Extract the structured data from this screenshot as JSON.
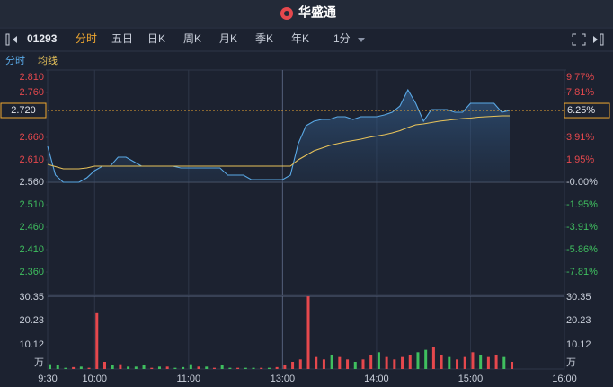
{
  "app": {
    "logo": "华盛通",
    "code": "01293",
    "tabs": [
      "分时",
      "五日",
      "日K",
      "周K",
      "月K",
      "季K",
      "年K"
    ],
    "active_tab": 0,
    "interval": "1分"
  },
  "chart_data": [
    {
      "type": "line",
      "x": [
        0,
        5,
        10,
        15,
        20,
        25,
        30,
        35,
        40,
        45,
        50,
        55,
        60,
        65,
        70,
        75,
        80,
        85,
        90,
        95,
        100,
        105,
        110,
        115,
        120,
        125,
        130,
        135,
        140,
        145,
        150,
        155,
        160,
        165,
        170,
        175,
        180,
        185,
        190,
        195,
        200,
        205,
        210,
        215,
        220,
        225,
        230,
        235,
        240,
        245,
        250,
        255,
        260,
        265,
        270,
        275,
        280,
        285,
        290,
        295
      ],
      "series": [
        {
          "name": "分时",
          "color": "#5aa9e6",
          "values": [
            2.64,
            2.576,
            2.56,
            2.56,
            2.56,
            2.57,
            2.586,
            2.596,
            2.596,
            2.616,
            2.616,
            2.606,
            2.596,
            2.596,
            2.596,
            2.596,
            2.596,
            2.592,
            2.592,
            2.592,
            2.592,
            2.592,
            2.592,
            2.576,
            2.576,
            2.576,
            2.566,
            2.566,
            2.566,
            2.566,
            2.566,
            2.576,
            2.646,
            2.686,
            2.696,
            2.7,
            2.7,
            2.706,
            2.706,
            2.7,
            2.706,
            2.706,
            2.706,
            2.71,
            2.716,
            2.73,
            2.766,
            2.736,
            2.696,
            2.722,
            2.722,
            2.722,
            2.716,
            2.716,
            2.736,
            2.736,
            2.736,
            2.736,
            2.716,
            2.72
          ]
        },
        {
          "name": "均线",
          "color": "#e8c35a",
          "values": [
            2.6,
            2.595,
            2.59,
            2.59,
            2.59,
            2.592,
            2.596,
            2.596,
            2.596,
            2.596,
            2.596,
            2.596,
            2.596,
            2.596,
            2.596,
            2.596,
            2.596,
            2.596,
            2.596,
            2.596,
            2.596,
            2.596,
            2.596,
            2.596,
            2.596,
            2.596,
            2.596,
            2.596,
            2.596,
            2.596,
            2.596,
            2.596,
            2.61,
            2.62,
            2.63,
            2.636,
            2.642,
            2.646,
            2.65,
            2.653,
            2.656,
            2.66,
            2.663,
            2.666,
            2.67,
            2.675,
            2.682,
            2.688,
            2.69,
            2.693,
            2.696,
            2.698,
            2.7,
            2.702,
            2.703,
            2.705,
            2.706,
            2.707,
            2.708,
            2.708
          ]
        }
      ],
      "xlim": [
        0,
        330
      ],
      "ylim": [
        2.31,
        2.81
      ],
      "yticks": [
        {
          "value": 2.81,
          "label": "2.810"
        },
        {
          "value": 2.76,
          "label": "2.760"
        },
        {
          "value": 2.66,
          "label": "2.660"
        },
        {
          "value": 2.61,
          "label": "2.610"
        },
        {
          "value": 2.56,
          "label": "2.560"
        },
        {
          "value": 2.51,
          "label": "2.510"
        },
        {
          "value": 2.46,
          "label": "2.460"
        },
        {
          "value": 2.41,
          "label": "2.410"
        },
        {
          "value": 2.36,
          "label": "2.360"
        }
      ],
      "y2lim": [
        -9.77,
        9.77
      ],
      "y2ticks": [
        {
          "value": 9.77,
          "label": "9.77%"
        },
        {
          "value": 7.81,
          "label": "7.81%"
        },
        {
          "value": 3.91,
          "label": "3.91%"
        },
        {
          "value": 1.95,
          "label": "1.95%"
        },
        {
          "value": 0,
          "label": "-0.00%"
        },
        {
          "value": -1.95,
          "label": "-1.95%"
        },
        {
          "value": -3.91,
          "label": "-3.91%"
        },
        {
          "value": -5.86,
          "label": "-5.86%"
        },
        {
          "value": -7.81,
          "label": "-7.81%"
        }
      ],
      "base": 2.56,
      "last_price": {
        "value": 2.72,
        "label": "2.720"
      },
      "last_change": {
        "value": 6.25,
        "label": "6.25%"
      }
    },
    {
      "type": "bar",
      "x": [
        0,
        5,
        10,
        15,
        20,
        25,
        30,
        35,
        40,
        45,
        50,
        55,
        60,
        65,
        70,
        75,
        80,
        85,
        90,
        95,
        100,
        105,
        110,
        115,
        120,
        125,
        130,
        135,
        140,
        145,
        150,
        155,
        160,
        165,
        170,
        175,
        180,
        185,
        190,
        195,
        200,
        205,
        210,
        215,
        220,
        225,
        230,
        235,
        240,
        245,
        250,
        255,
        260,
        265,
        270,
        275,
        280,
        285,
        290,
        295
      ],
      "values": [
        2,
        1.5,
        0.5,
        0.8,
        1,
        0.5,
        23.3,
        3,
        1.5,
        2,
        1,
        1,
        1.5,
        0.5,
        1,
        1,
        0.5,
        0.8,
        2,
        1,
        1,
        0.5,
        1.5,
        0.5,
        0.5,
        0.5,
        0.5,
        0.5,
        0.5,
        0.8,
        1.5,
        3,
        4,
        30.3,
        5,
        4,
        6,
        5,
        4,
        3,
        4,
        6,
        7,
        5,
        4,
        5,
        6,
        7,
        8,
        9,
        6,
        5,
        4,
        5,
        7,
        6,
        5,
        6,
        5,
        3
      ],
      "colors": [
        "#3fbf5f",
        "#3fbf5f",
        "#3fbf5f",
        "#e5484d",
        "#3fbf5f",
        "#e5484d",
        "#e5484d",
        "#e5484d",
        "#3fbf5f",
        "#e5484d",
        "#3fbf5f",
        "#3fbf5f",
        "#3fbf5f",
        "#e5484d",
        "#3fbf5f",
        "#e5484d",
        "#3fbf5f",
        "#3fbf5f",
        "#3fbf5f",
        "#e5484d",
        "#3fbf5f",
        "#e5484d",
        "#3fbf5f",
        "#3fbf5f",
        "#e5484d",
        "#3fbf5f",
        "#3fbf5f",
        "#e5484d",
        "#3fbf5f",
        "#e5484d",
        "#e5484d",
        "#e5484d",
        "#e5484d",
        "#e5484d",
        "#e5484d",
        "#e5484d",
        "#3fbf5f",
        "#e5484d",
        "#e5484d",
        "#3fbf5f",
        "#e5484d",
        "#e5484d",
        "#3fbf5f",
        "#e5484d",
        "#e5484d",
        "#e5484d",
        "#e5484d",
        "#3fbf5f",
        "#3fbf5f",
        "#e5484d",
        "#e5484d",
        "#3fbf5f",
        "#e5484d",
        "#e5484d",
        "#e5484d",
        "#3fbf5f",
        "#e5484d",
        "#e5484d",
        "#3fbf5f",
        "#e5484d"
      ],
      "xlim": [
        0,
        330
      ],
      "xticks": [
        {
          "value": 0,
          "label": "9:30"
        },
        {
          "value": 30,
          "label": "10:00"
        },
        {
          "value": 90,
          "label": "11:00"
        },
        {
          "value": 150,
          "label": "13:00"
        },
        {
          "value": 210,
          "label": "14:00"
        },
        {
          "value": 270,
          "label": "15:00"
        },
        {
          "value": 330,
          "label": "16:00"
        }
      ],
      "ylim": [
        0,
        30.35
      ],
      "yticks": [
        10.12,
        20.23,
        30.35
      ],
      "unit": "万"
    }
  ]
}
